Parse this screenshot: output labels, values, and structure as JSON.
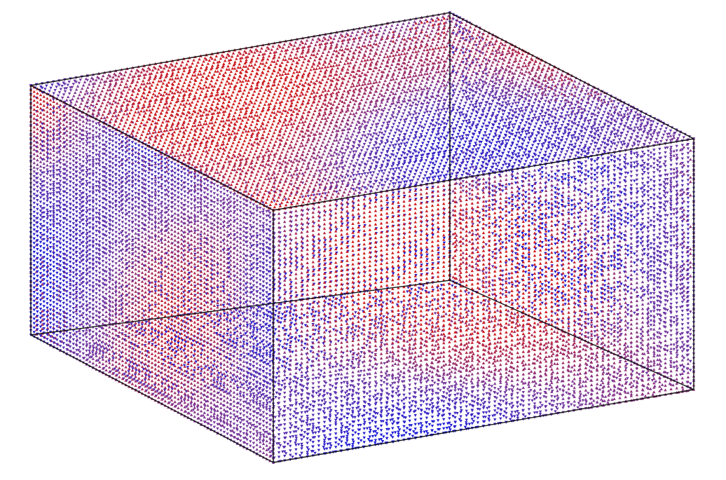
{
  "scene": {
    "description_visible_text": "",
    "colors": {
      "background": "#ffffff",
      "up_arrows": "#d11a1a",
      "down_arrows": "#1a1ad6",
      "box_edges": "#111111"
    },
    "glyphs": {
      "up": "triangle-up",
      "down": "triangle-down"
    }
  }
}
